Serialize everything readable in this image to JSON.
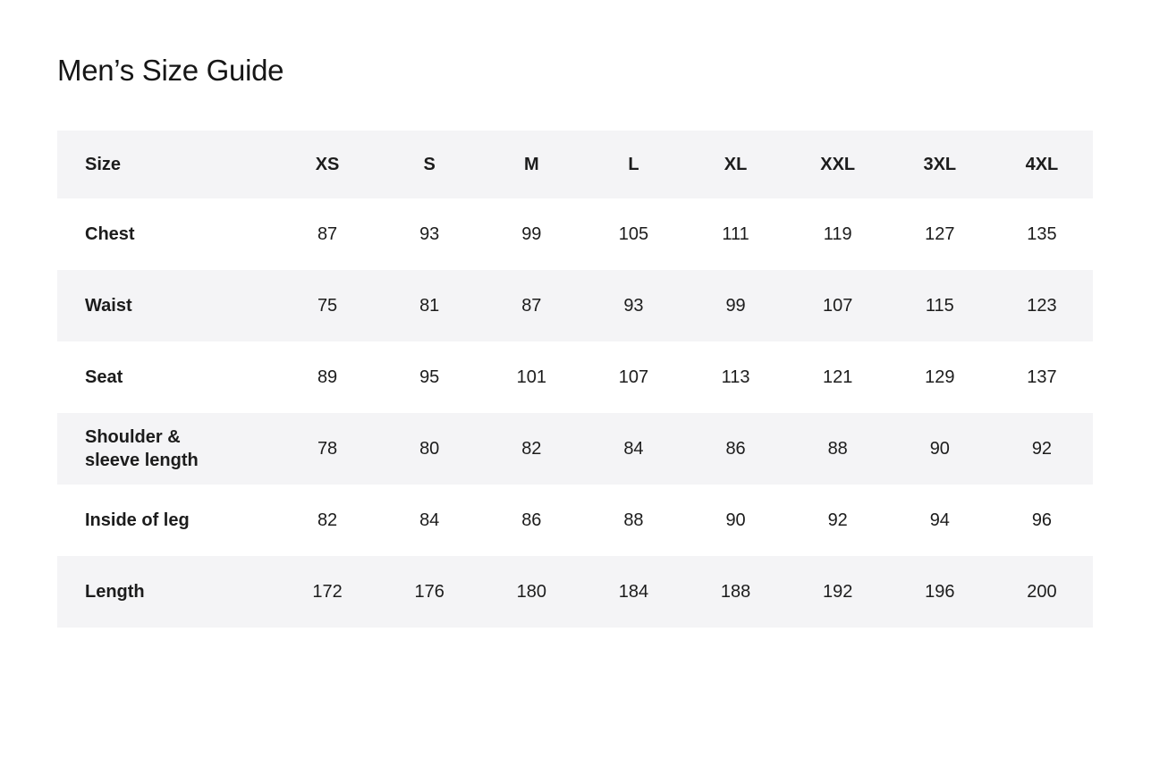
{
  "page": {
    "title": "Men’s Size Guide"
  },
  "colors": {
    "background": "#ffffff",
    "row_stripe": "#f4f4f6",
    "text": "#1a1a1a"
  },
  "table": {
    "columns": [
      "Size",
      "XS",
      "S",
      "M",
      "L",
      "XL",
      "XXL",
      "3XL",
      "4XL"
    ],
    "rows": [
      {
        "label": "Chest",
        "values": [
          87,
          93,
          99,
          105,
          111,
          119,
          127,
          135
        ]
      },
      {
        "label": "Waist",
        "values": [
          75,
          81,
          87,
          93,
          99,
          107,
          115,
          123
        ]
      },
      {
        "label": "Seat",
        "values": [
          89,
          95,
          101,
          107,
          113,
          121,
          129,
          137
        ]
      },
      {
        "label": "Shoulder & sleeve length",
        "values": [
          78,
          80,
          82,
          84,
          86,
          88,
          90,
          92
        ]
      },
      {
        "label": "Inside of leg",
        "values": [
          82,
          84,
          86,
          88,
          90,
          92,
          94,
          96
        ]
      },
      {
        "label": "Length",
        "values": [
          172,
          176,
          180,
          184,
          188,
          192,
          196,
          200
        ]
      }
    ]
  }
}
